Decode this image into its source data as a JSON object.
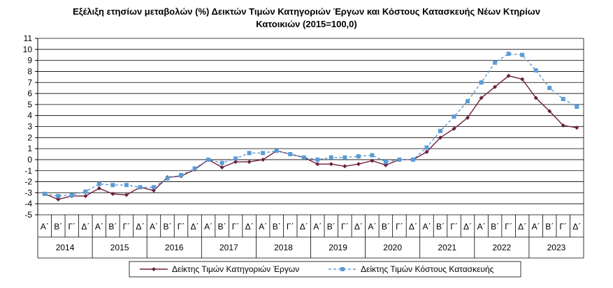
{
  "chart_data": {
    "type": "line",
    "title_line1": "Εξέλιξη ετησίων μεταβολών (%) Δεικτών Τιμών Κατηγοριών Έργων και Κόστους Κατασκευής Νέων Κτηρίων",
    "title_line2": "Κατοικιών (2015=100,0)",
    "ylim": [
      -5,
      11
    ],
    "y_ticks": [
      "11",
      "10",
      "9",
      "8",
      "7",
      "6",
      "5",
      "4",
      "3",
      "2",
      "1",
      "0",
      "-1",
      "-2",
      "-3",
      "-4",
      "-5"
    ],
    "quarters": [
      "Α΄",
      "Β΄",
      "Γ΄",
      "Δ΄"
    ],
    "years": [
      "2014",
      "2015",
      "2016",
      "2017",
      "2018",
      "2019",
      "2020",
      "2021",
      "2022",
      "2023"
    ],
    "grid": "horizontal",
    "legend_position": "bottom",
    "series": [
      {
        "name": "Δείκτης Τιμών Κατηγοριών Έργων",
        "color": "#6b1e3c",
        "style": "solid",
        "marker": "diamond",
        "values": [
          -3.1,
          -3.6,
          -3.3,
          -3.3,
          -2.6,
          -3.1,
          -3.2,
          -2.5,
          -2.8,
          -1.6,
          -1.5,
          -0.9,
          0.0,
          -0.7,
          -0.2,
          -0.2,
          0.0,
          0.8,
          0.5,
          0.2,
          -0.4,
          -0.4,
          -0.6,
          -0.4,
          -0.1,
          -0.5,
          0.0,
          0.0,
          0.7,
          2.0,
          2.8,
          3.8,
          5.6,
          6.6,
          7.6,
          7.3,
          5.6,
          4.4,
          3.1,
          2.9
        ]
      },
      {
        "name": "Δείκτης Τιμών Κόστους Κατασκευής",
        "color": "#5b9bd5",
        "style": "dashed",
        "marker": "square",
        "values": [
          -3.1,
          -3.3,
          -3.2,
          -2.9,
          -2.2,
          -2.3,
          -2.3,
          -2.5,
          -2.5,
          -1.7,
          -1.4,
          -0.8,
          0.0,
          -0.3,
          0.1,
          0.6,
          0.6,
          0.8,
          0.5,
          0.2,
          0.0,
          0.2,
          0.2,
          0.3,
          0.4,
          -0.2,
          0.0,
          0.0,
          1.1,
          2.6,
          3.9,
          5.3,
          7.0,
          8.8,
          9.6,
          9.5,
          8.1,
          6.5,
          5.5,
          4.8
        ]
      }
    ]
  }
}
